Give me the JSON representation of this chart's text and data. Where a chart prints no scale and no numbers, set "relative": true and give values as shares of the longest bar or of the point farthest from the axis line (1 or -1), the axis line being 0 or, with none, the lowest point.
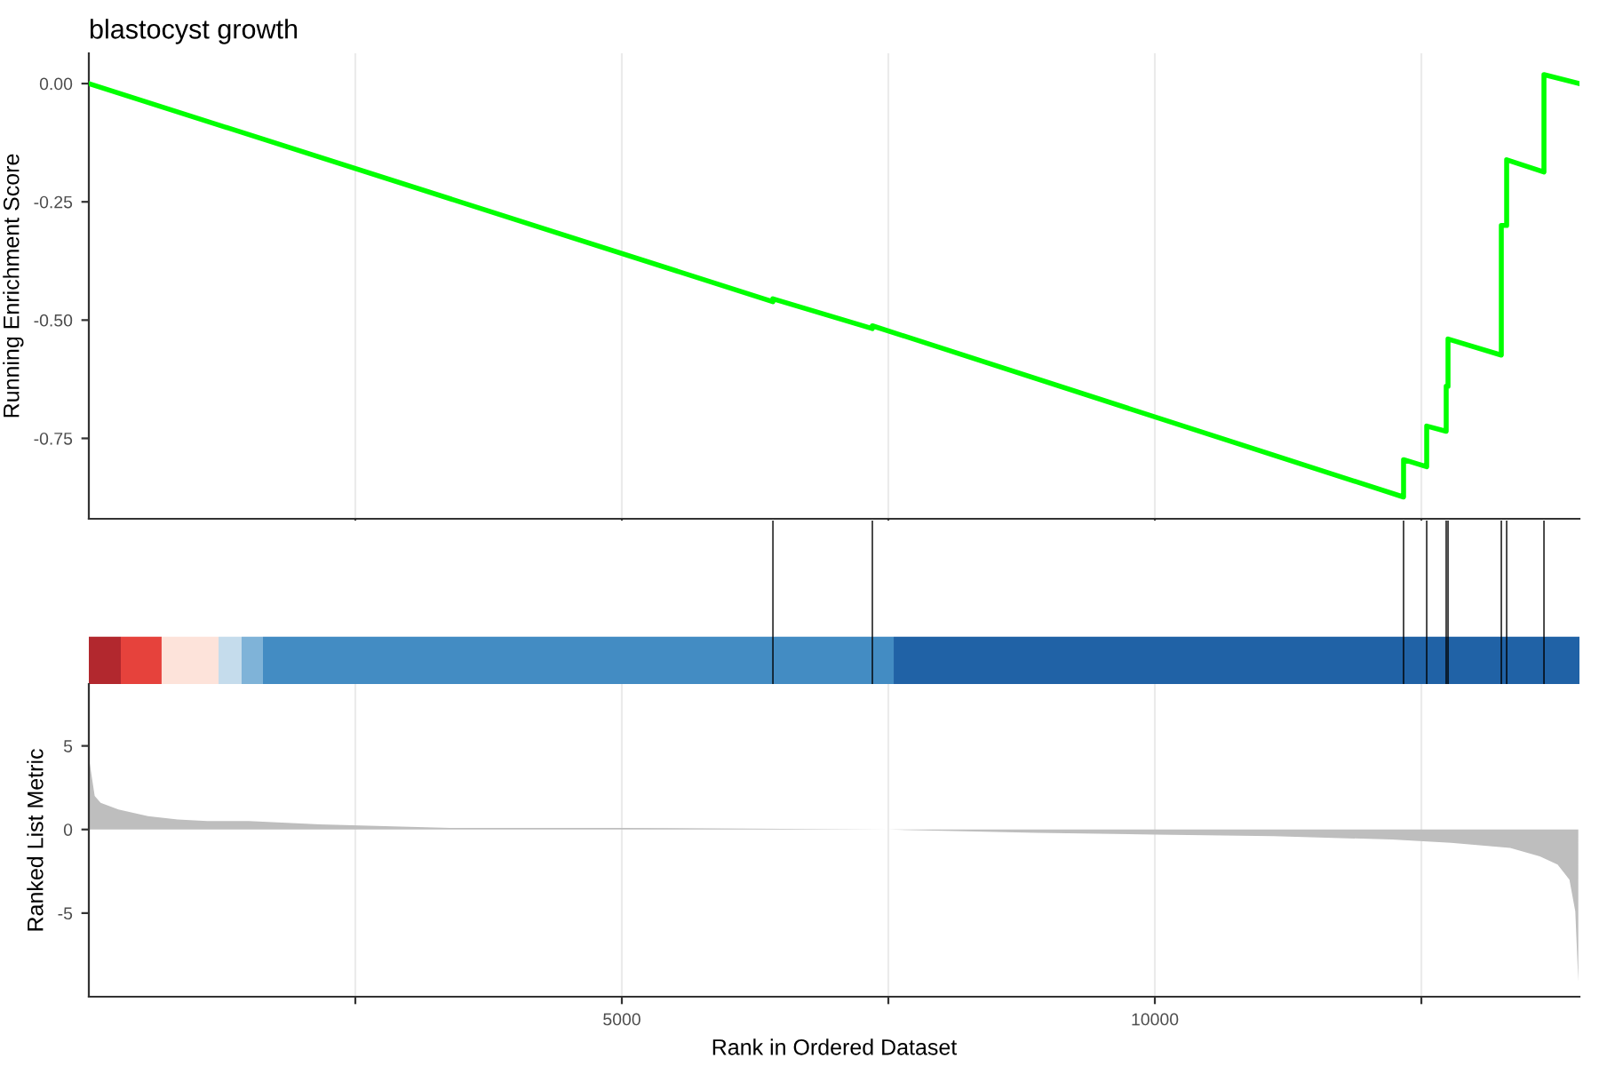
{
  "chart_data": [
    {
      "type": "line",
      "title": "blastocyst growth",
      "ylabel": "Running Enrichment Score",
      "grid": "x",
      "tick_labels": "y",
      "xlim": [
        0,
        13983
      ],
      "xticks": [
        {
          "value": 2500,
          "label": null
        },
        {
          "value": 5000,
          "label": null
        },
        {
          "value": 7500,
          "label": null
        },
        {
          "value": 10000,
          "label": null
        },
        {
          "value": 12500,
          "label": null
        }
      ],
      "ylim": [
        -0.92,
        0.064
      ],
      "yticks": [
        {
          "value": 0,
          "label": "0.00"
        },
        {
          "value": -0.25,
          "label": "-0.25"
        },
        {
          "value": -0.5,
          "label": "-0.50"
        },
        {
          "value": -0.75,
          "label": "-0.75"
        }
      ],
      "series": [
        {
          "color": "#00ff00",
          "x": [
            0,
            6417,
            6417,
            7350,
            7350,
            12333,
            12333,
            12550,
            12550,
            12733,
            12733,
            12750,
            12750,
            13250,
            13250,
            13300,
            13300,
            13650,
            13650,
            13983
          ],
          "values": [
            0,
            -0.461,
            -0.455,
            -0.518,
            -0.512,
            -0.874,
            -0.795,
            -0.81,
            -0.724,
            -0.735,
            -0.64,
            -0.64,
            -0.54,
            -0.574,
            -0.3,
            -0.3,
            -0.161,
            -0.187,
            0.019,
            0.0
          ]
        }
      ]
    },
    {
      "type": "bar",
      "relative": true,
      "tick_labels": false,
      "xlim": [
        0,
        13983
      ],
      "series": [
        {
          "color": "#000000",
          "x": [
            6417,
            7350,
            12333,
            12550,
            12733,
            12750,
            13250,
            13300,
            13650
          ],
          "values": [
            1,
            1,
            1,
            1,
            1,
            1,
            1,
            1,
            1
          ]
        }
      ],
      "bands": [
        {
          "axis": "x",
          "from": 0,
          "to": 300,
          "color": "#b2282e"
        },
        {
          "axis": "x",
          "from": 300,
          "to": 683,
          "color": "#e6423c"
        },
        {
          "axis": "x",
          "from": 683,
          "to": 1217,
          "color": "#fde3da"
        },
        {
          "axis": "x",
          "from": 1217,
          "to": 1433,
          "color": "#c5dcec"
        },
        {
          "axis": "x",
          "from": 1433,
          "to": 1633,
          "color": "#7fb3d8"
        },
        {
          "axis": "x",
          "from": 1633,
          "to": 7550,
          "color": "#438cc3"
        },
        {
          "axis": "x",
          "from": 7550,
          "to": 13983,
          "color": "#2062a6"
        }
      ]
    },
    {
      "type": "area",
      "xlabel": "Rank in Ordered Dataset",
      "ylabel": "Ranked List Metric",
      "grid": "x",
      "xlim": [
        0,
        13983
      ],
      "xticks": [
        {
          "value": 2500,
          "label": null
        },
        5000,
        {
          "value": 7500,
          "label": null
        },
        10000,
        {
          "value": 12500,
          "label": null
        }
      ],
      "ylim": [
        -10,
        8.7
      ],
      "yticks": [
        5,
        0,
        -5
      ],
      "series": [
        {
          "color": "#bebebe",
          "x": [
            0,
            55,
            111,
            278,
            555,
            833,
            1111,
            1500,
            2167,
            3389,
            5000,
            7500,
            8889,
            10000,
            11111,
            12222,
            12778,
            13333,
            13611,
            13778,
            13889,
            13944,
            13972
          ],
          "values": [
            4.3,
            2.0,
            1.6,
            1.2,
            0.8,
            0.6,
            0.5,
            0.5,
            0.3,
            0.1,
            0.1,
            0.0,
            -0.2,
            -0.3,
            -0.4,
            -0.6,
            -0.8,
            -1.1,
            -1.6,
            -2.1,
            -3.0,
            -4.9,
            -9.1
          ]
        }
      ]
    }
  ]
}
